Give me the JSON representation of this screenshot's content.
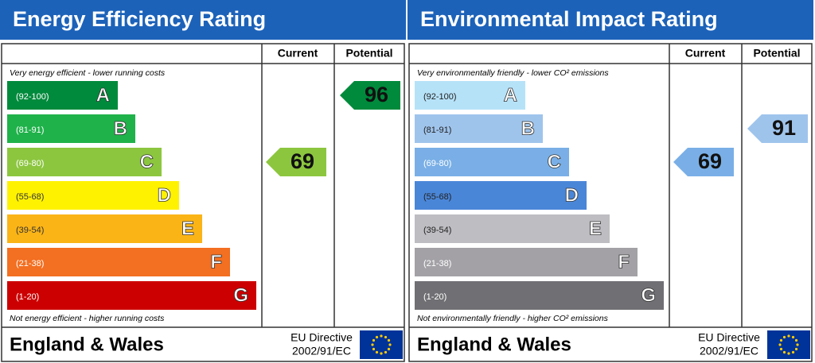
{
  "panels": [
    {
      "title": "Energy Efficiency Rating",
      "headers": [
        "Current",
        "Potential"
      ],
      "top_note": "Very energy efficient - lower running costs",
      "bottom_note": "Not energy efficient - higher running costs",
      "bands": [
        {
          "range": "(92-100)",
          "letter": "A",
          "color": "#008a3c",
          "text_color": "#ffffff"
        },
        {
          "range": "(81-91)",
          "letter": "B",
          "color": "#1fb24a",
          "text_color": "#ffffff"
        },
        {
          "range": "(69-80)",
          "letter": "C",
          "color": "#8cc63f",
          "text_color": "#ffffff"
        },
        {
          "range": "(55-68)",
          "letter": "D",
          "color": "#fff200",
          "text_color": "#333333"
        },
        {
          "range": "(39-54)",
          "letter": "E",
          "color": "#fbb416",
          "text_color": "#333333"
        },
        {
          "range": "(21-38)",
          "letter": "F",
          "color": "#f36f21",
          "text_color": "#ffffff"
        },
        {
          "range": "(1-20)",
          "letter": "G",
          "color": "#cc0000",
          "text_color": "#ffffff"
        }
      ],
      "current": 69,
      "potential": 96,
      "footer": "England & Wales",
      "directive": "EU Directive",
      "directive_code": "2002/91/EC"
    },
    {
      "title": "Environmental Impact Rating",
      "headers": [
        "Current",
        "Potential"
      ],
      "top_note": "Very environmentally friendly - lower CO² emissions",
      "bottom_note": "Not environmentally friendly - higher CO² emissions",
      "bands": [
        {
          "range": "(92-100)",
          "letter": "A",
          "color": "#b6e2f8",
          "text_color": "#222222"
        },
        {
          "range": "(81-91)",
          "letter": "B",
          "color": "#9fc4ec",
          "text_color": "#222222"
        },
        {
          "range": "(69-80)",
          "letter": "C",
          "color": "#79afe6",
          "text_color": "#ffffff"
        },
        {
          "range": "(55-68)",
          "letter": "D",
          "color": "#4a86d8",
          "text_color": "#222222"
        },
        {
          "range": "(39-54)",
          "letter": "E",
          "color": "#bebdc2",
          "text_color": "#222222"
        },
        {
          "range": "(21-38)",
          "letter": "F",
          "color": "#a3a1a6",
          "text_color": "#ffffff"
        },
        {
          "range": "(1-20)",
          "letter": "G",
          "color": "#707074",
          "text_color": "#ffffff"
        }
      ],
      "current": 69,
      "potential": 91,
      "footer": "England & Wales",
      "directive": "EU Directive",
      "directive_code": "2002/91/EC"
    }
  ]
}
